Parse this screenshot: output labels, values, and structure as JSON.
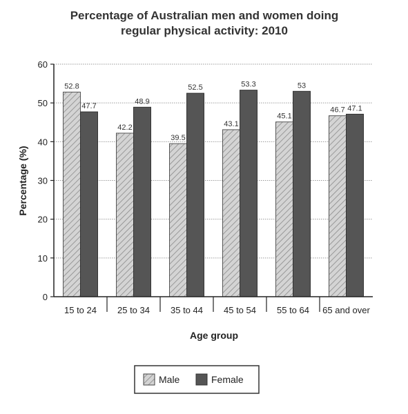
{
  "chart_data": {
    "type": "bar",
    "title": "Percentage of Australian men and women doing",
    "subtitle": "regular physical activity: 2010",
    "xlabel": "Age group",
    "ylabel": "Percentage (%)",
    "ylim": [
      0,
      60
    ],
    "yticks": [
      "0",
      "10",
      "20",
      "30",
      "40",
      "50",
      "60"
    ],
    "grid": true,
    "legend_position": "bottom",
    "categories": [
      "15 to 24",
      "25 to 34",
      "35 to 44",
      "45 to 54",
      "55 to 64",
      "65 and over"
    ],
    "series": [
      {
        "name": "Male",
        "values": [
          52.8,
          42.2,
          39.5,
          43.1,
          45.1,
          46.7
        ],
        "labels": [
          "52.8",
          "42.2",
          "39.5",
          "43.1",
          "45.1",
          "46.7"
        ],
        "color": "#c8c8c8",
        "pattern": "hatched"
      },
      {
        "name": "Female",
        "values": [
          47.7,
          48.9,
          52.5,
          53.3,
          53,
          47.1
        ],
        "labels": [
          "47.7",
          "48.9",
          "52.5",
          "53.3",
          "53",
          "47.1"
        ],
        "color": "#555555",
        "pattern": "solid"
      }
    ]
  }
}
